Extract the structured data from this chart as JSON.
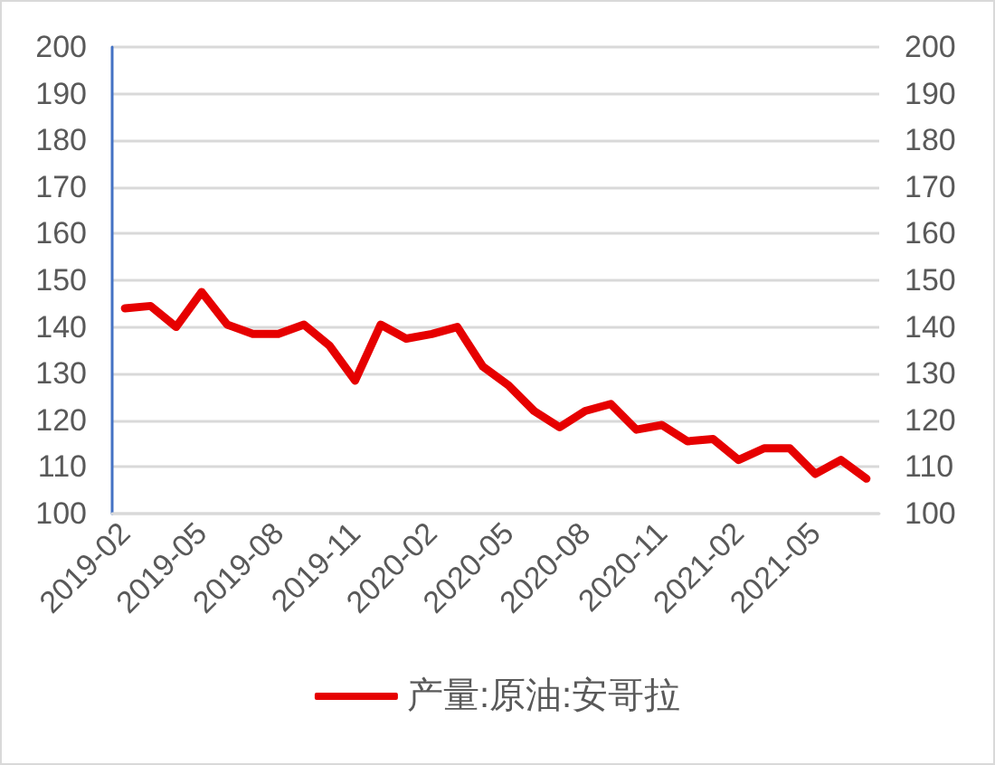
{
  "chart_data": {
    "type": "line",
    "categories": [
      "2019-02",
      null,
      null,
      "2019-05",
      null,
      null,
      "2019-08",
      null,
      null,
      "2019-11",
      null,
      null,
      "2020-02",
      null,
      null,
      "2020-05",
      null,
      null,
      "2020-08",
      null,
      null,
      "2020-11",
      null,
      null,
      "2021-02",
      null,
      null,
      "2021-05",
      null,
      null
    ],
    "series": [
      {
        "name": "产量:原油:安哥拉",
        "color": "#e60000",
        "values": [
          144,
          144.5,
          140,
          147.5,
          140.5,
          138.5,
          138.5,
          140.5,
          136,
          128.5,
          140.5,
          137.5,
          138.5,
          140,
          131.5,
          127.5,
          122,
          118.5,
          122,
          123.5,
          118,
          119,
          115.5,
          116,
          111.5,
          114,
          114,
          108.5,
          111.5,
          107.5
        ]
      }
    ],
    "ylim": [
      100,
      200
    ],
    "yticks": [
      100,
      110,
      120,
      130,
      140,
      150,
      160,
      170,
      180,
      190,
      200
    ],
    "y2lim": [
      100,
      200
    ],
    "y2ticks": [
      100,
      110,
      120,
      130,
      140,
      150,
      160,
      170,
      180,
      190,
      200
    ],
    "grid": "y",
    "legend": "bottom",
    "marker": "none",
    "line_style": "solid"
  }
}
